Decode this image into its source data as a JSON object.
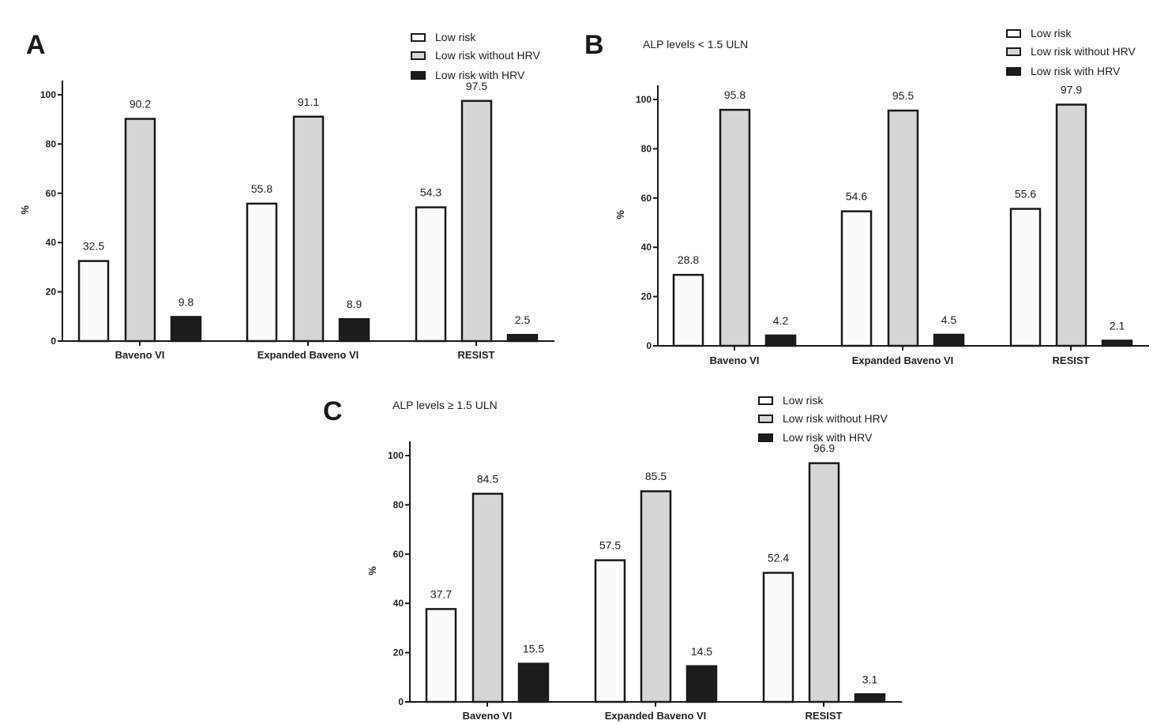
{
  "chart_data": [
    {
      "type": "bar",
      "panel": "A",
      "subtitle": "",
      "ylabel": "%",
      "ylim": [
        0,
        100
      ],
      "yticks": [
        0,
        20,
        40,
        60,
        80,
        100
      ],
      "categories": [
        "Baveno VI",
        "Expanded Baveno VI",
        "RESIST"
      ],
      "series": [
        {
          "name": "Low risk",
          "color": "#fbfbfb",
          "values": [
            32.5,
            55.8,
            54.3
          ]
        },
        {
          "name": "Low risk without HRV",
          "color": "#d6d6d6",
          "values": [
            90.2,
            91.1,
            97.5
          ]
        },
        {
          "name": "Low risk with HRV",
          "color": "#1c1c1c",
          "values": [
            9.8,
            8.9,
            2.5
          ]
        }
      ],
      "legend_position": "top-right"
    },
    {
      "type": "bar",
      "panel": "B",
      "subtitle": "ALP levels < 1.5 ULN",
      "ylabel": "%",
      "ylim": [
        0,
        100
      ],
      "yticks": [
        0,
        20,
        40,
        60,
        80,
        100
      ],
      "categories": [
        "Baveno VI",
        "Expanded Baveno VI",
        "RESIST"
      ],
      "series": [
        {
          "name": "Low risk",
          "color": "#fbfbfb",
          "values": [
            28.8,
            54.6,
            55.6
          ]
        },
        {
          "name": "Low risk without HRV",
          "color": "#d6d6d6",
          "values": [
            95.8,
            95.5,
            97.9
          ]
        },
        {
          "name": "Low risk with HRV",
          "color": "#1c1c1c",
          "values": [
            4.2,
            4.5,
            2.1
          ]
        }
      ],
      "legend_position": "top-right"
    },
    {
      "type": "bar",
      "panel": "C",
      "subtitle": "ALP levels ≥ 1.5 ULN",
      "ylabel": "%",
      "ylim": [
        0,
        100
      ],
      "yticks": [
        0,
        20,
        40,
        60,
        80,
        100
      ],
      "categories": [
        "Baveno VI",
        "Expanded Baveno VI",
        "RESIST"
      ],
      "series": [
        {
          "name": "Low risk",
          "color": "#fbfbfb",
          "values": [
            37.7,
            57.5,
            52.4
          ]
        },
        {
          "name": "Low risk without HRV",
          "color": "#d6d6d6",
          "values": [
            84.5,
            85.5,
            96.9
          ]
        },
        {
          "name": "Low risk with HRV",
          "color": "#1c1c1c",
          "values": [
            15.5,
            14.5,
            3.1
          ]
        }
      ],
      "legend_position": "top-right"
    }
  ]
}
